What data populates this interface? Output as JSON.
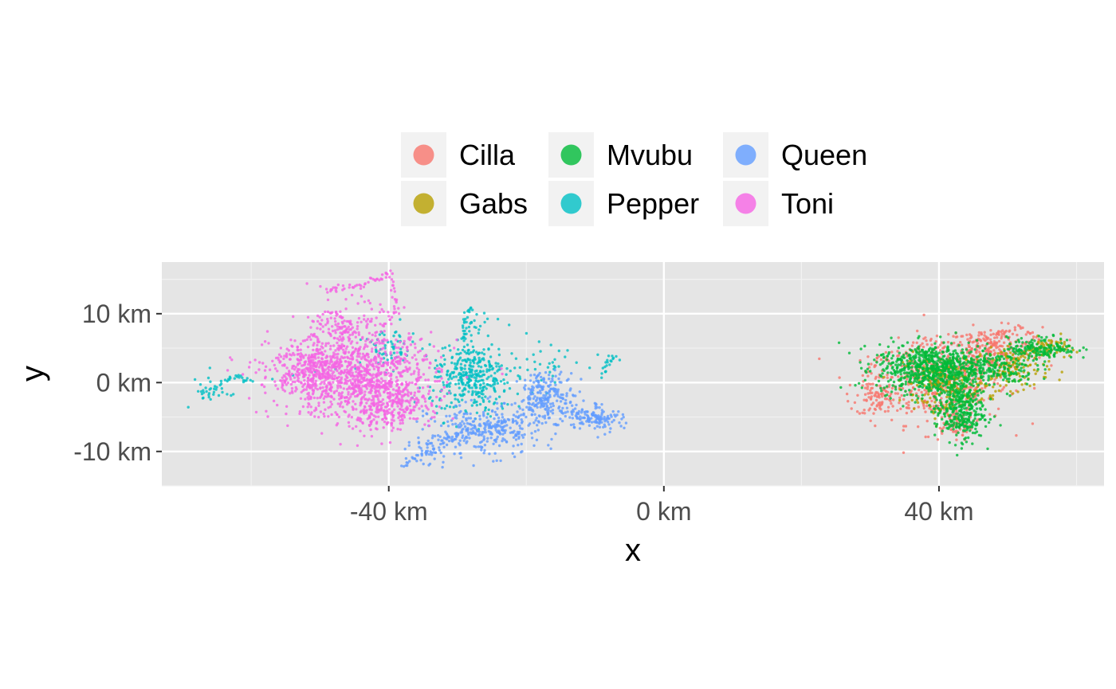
{
  "chart_data": {
    "type": "scatter",
    "title": "",
    "xlabel": "x",
    "ylabel": "y",
    "xlim": [
      -73,
      64
    ],
    "ylim": [
      -15,
      17.5
    ],
    "x_ticks": [
      {
        "value": -40,
        "label": "-40 km"
      },
      {
        "value": 0,
        "label": "0 km"
      },
      {
        "value": 40,
        "label": "40 km"
      }
    ],
    "y_ticks": [
      {
        "value": 10,
        "label": "10 km"
      },
      {
        "value": 0,
        "label": "0 km"
      },
      {
        "value": -10,
        "label": "-10 km"
      }
    ],
    "x_minor": [
      -60,
      -20,
      20,
      60
    ],
    "y_minor": [
      15,
      5,
      -5,
      -15
    ],
    "grid": true,
    "legend_position": "top",
    "panel_color": "#e5e5e5",
    "series": [
      {
        "name": "Cilla",
        "color": "#F8766D",
        "clusters": [
          {
            "x": 40,
            "y": 0,
            "sx": 5,
            "sy": 3,
            "n": 420
          },
          {
            "x": 48,
            "y": 5,
            "sx": 3.5,
            "sy": 1.5,
            "n": 220
          },
          {
            "x": 31,
            "y": -2,
            "sx": 1.5,
            "sy": 1.5,
            "n": 80
          },
          {
            "x": 42,
            "y": -6,
            "sx": 1.5,
            "sy": 1.2,
            "n": 60
          }
        ],
        "path": [
          [
            29,
            1
          ],
          [
            31,
            3
          ],
          [
            35,
            4
          ],
          [
            39,
            6
          ],
          [
            44,
            5
          ],
          [
            48,
            7
          ],
          [
            52,
            8
          ],
          [
            55,
            6
          ]
        ]
      },
      {
        "name": "Gabs",
        "color": "#B79F00",
        "clusters": [
          {
            "x": 41,
            "y": 0,
            "sx": 3,
            "sy": 2,
            "n": 200
          },
          {
            "x": 51,
            "y": 2,
            "sx": 2.5,
            "sy": 1.5,
            "n": 120
          },
          {
            "x": 56,
            "y": 5,
            "sx": 1.5,
            "sy": 0.8,
            "n": 60
          }
        ],
        "path": [
          [
            36,
            -2
          ],
          [
            40,
            -4
          ],
          [
            44,
            -2
          ],
          [
            48,
            0
          ],
          [
            52,
            4
          ],
          [
            54,
            5
          ]
        ]
      },
      {
        "name": "Mvubu",
        "color": "#00BA38",
        "clusters": [
          {
            "x": 39,
            "y": 2,
            "sx": 4,
            "sy": 1.8,
            "n": 700
          },
          {
            "x": 43,
            "y": -4,
            "sx": 1.8,
            "sy": 2.2,
            "n": 350
          },
          {
            "x": 55,
            "y": 5,
            "sx": 2.5,
            "sy": 0.8,
            "n": 150
          },
          {
            "x": 48,
            "y": 2,
            "sx": 3,
            "sy": 1.2,
            "n": 150
          }
        ],
        "path": [
          [
            31,
            4
          ],
          [
            34,
            3.5
          ],
          [
            38,
            4
          ],
          [
            42,
            4
          ],
          [
            46,
            3
          ],
          [
            50,
            4
          ],
          [
            53,
            5
          ],
          [
            57,
            5
          ]
        ]
      },
      {
        "name": "Pepper",
        "color": "#00BFC4",
        "clusters": [
          {
            "x": -28,
            "y": 0,
            "sx": 3,
            "sy": 2.5,
            "n": 300
          },
          {
            "x": -28,
            "y": 4,
            "sx": 1,
            "sy": 2.5,
            "n": 80
          },
          {
            "x": -66,
            "y": -1,
            "sx": 1.5,
            "sy": 1.5,
            "n": 25
          },
          {
            "x": -19,
            "y": 2,
            "sx": 4,
            "sy": 1.5,
            "n": 40
          },
          {
            "x": -40,
            "y": 5,
            "sx": 2,
            "sy": 1.5,
            "n": 60
          }
        ],
        "path": [
          [
            -67,
            -2
          ],
          [
            -64,
            0
          ],
          [
            -62,
            1
          ],
          [
            -60,
            0
          ],
          [
            -29,
            6
          ],
          [
            -29,
            9
          ],
          [
            -28,
            11
          ],
          [
            -9,
            1
          ],
          [
            -8,
            3
          ],
          [
            -7,
            4
          ]
        ]
      },
      {
        "name": "Queen",
        "color": "#619CFF",
        "clusters": [
          {
            "x": -26,
            "y": -7,
            "sx": 4,
            "sy": 1.8,
            "n": 300
          },
          {
            "x": -17,
            "y": -2,
            "sx": 2,
            "sy": 1.8,
            "n": 200
          },
          {
            "x": -10,
            "y": -5,
            "sx": 2,
            "sy": 1,
            "n": 120
          },
          {
            "x": -34,
            "y": -10,
            "sx": 1.5,
            "sy": 1.2,
            "n": 40
          }
        ],
        "path": [
          [
            -38,
            -12
          ],
          [
            -36,
            -11
          ],
          [
            -33,
            -9
          ],
          [
            -30,
            -8
          ],
          [
            -27,
            -7
          ],
          [
            -24,
            -6
          ],
          [
            -21,
            -5
          ],
          [
            -18,
            -3
          ],
          [
            -16,
            -1
          ],
          [
            -13,
            -4
          ],
          [
            -10,
            -5
          ],
          [
            -8,
            -5.5
          ]
        ]
      },
      {
        "name": "Toni",
        "color": "#F564E3",
        "clusters": [
          {
            "x": -45,
            "y": 1,
            "sx": 6,
            "sy": 3,
            "n": 1000
          },
          {
            "x": -40,
            "y": -3,
            "sx": 3,
            "sy": 2,
            "n": 300
          },
          {
            "x": -52,
            "y": 2,
            "sx": 2.5,
            "sy": 1.8,
            "n": 200
          },
          {
            "x": -46,
            "y": 8,
            "sx": 2.5,
            "sy": 2,
            "n": 150
          }
        ],
        "path": [
          [
            -49,
            13
          ],
          [
            -47,
            14
          ],
          [
            -44,
            14
          ],
          [
            -42,
            15
          ],
          [
            -40,
            16
          ],
          [
            -39,
            13
          ],
          [
            -39,
            10
          ],
          [
            -41,
            8
          ]
        ]
      }
    ]
  }
}
